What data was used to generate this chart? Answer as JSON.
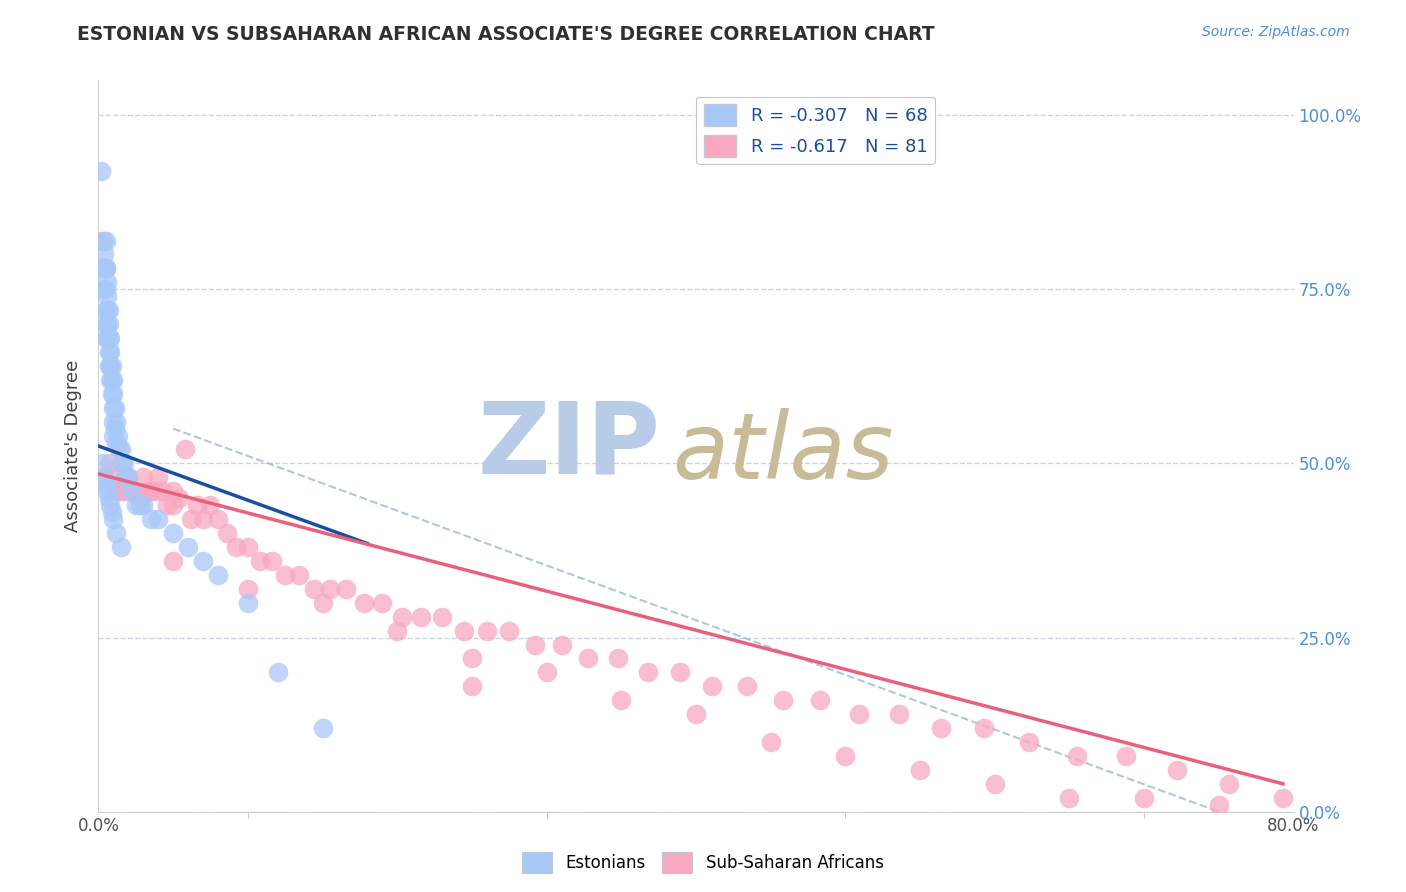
{
  "title": "ESTONIAN VS SUBSAHARAN AFRICAN ASSOCIATE'S DEGREE CORRELATION CHART",
  "source": "Source: ZipAtlas.com",
  "ylabel": "Associate's Degree",
  "legend_r1": "R = -0.307",
  "legend_n1": "N = 68",
  "legend_r2": "R = -0.617",
  "legend_n2": "N = 81",
  "xlim": [
    0.0,
    0.8
  ],
  "ylim": [
    0.0,
    1.05
  ],
  "xticks": [
    0.0,
    0.2,
    0.4,
    0.6,
    0.8
  ],
  "xticklabels": [
    "0.0%",
    "",
    "",
    "",
    "80.0%"
  ],
  "yticks": [
    0.0,
    0.25,
    0.5,
    0.75,
    1.0
  ],
  "right_yticklabels": [
    "0.0%",
    "25.0%",
    "50.0%",
    "75.0%",
    "100.0%"
  ],
  "color_estonian": "#a8c8f8",
  "color_subsaharan": "#f8a8c0",
  "color_line_estonian": "#1a4fa0",
  "color_line_subsaharan": "#e8607a",
  "color_title": "#303030",
  "color_source": "#4a90d9",
  "color_grid": "#c8d4e8",
  "color_watermark_zip": "#b8cce8",
  "color_watermark_atlas": "#c8bc98",
  "background_color": "#ffffff",
  "estonian_x": [
    0.002,
    0.003,
    0.003,
    0.004,
    0.004,
    0.004,
    0.005,
    0.005,
    0.005,
    0.005,
    0.005,
    0.005,
    0.006,
    0.006,
    0.006,
    0.006,
    0.006,
    0.007,
    0.007,
    0.007,
    0.007,
    0.007,
    0.008,
    0.008,
    0.008,
    0.008,
    0.009,
    0.009,
    0.009,
    0.01,
    0.01,
    0.01,
    0.01,
    0.01,
    0.011,
    0.011,
    0.012,
    0.012,
    0.013,
    0.014,
    0.015,
    0.016,
    0.017,
    0.018,
    0.02,
    0.022,
    0.025,
    0.028,
    0.03,
    0.035,
    0.04,
    0.05,
    0.06,
    0.07,
    0.08,
    0.1,
    0.12,
    0.15,
    0.003,
    0.004,
    0.005,
    0.006,
    0.007,
    0.008,
    0.009,
    0.01,
    0.012,
    0.015
  ],
  "estonian_y": [
    0.92,
    0.82,
    0.78,
    0.8,
    0.78,
    0.75,
    0.82,
    0.78,
    0.75,
    0.72,
    0.7,
    0.68,
    0.76,
    0.74,
    0.72,
    0.7,
    0.68,
    0.72,
    0.7,
    0.68,
    0.66,
    0.64,
    0.68,
    0.66,
    0.64,
    0.62,
    0.64,
    0.62,
    0.6,
    0.62,
    0.6,
    0.58,
    0.56,
    0.54,
    0.58,
    0.55,
    0.56,
    0.53,
    0.54,
    0.52,
    0.52,
    0.5,
    0.5,
    0.48,
    0.48,
    0.46,
    0.44,
    0.44,
    0.44,
    0.42,
    0.42,
    0.4,
    0.38,
    0.36,
    0.34,
    0.3,
    0.2,
    0.12,
    0.5,
    0.48,
    0.47,
    0.46,
    0.45,
    0.44,
    0.43,
    0.42,
    0.4,
    0.38
  ],
  "subsaharan_x": [
    0.003,
    0.005,
    0.008,
    0.01,
    0.012,
    0.015,
    0.018,
    0.02,
    0.022,
    0.025,
    0.028,
    0.03,
    0.033,
    0.035,
    0.038,
    0.04,
    0.043,
    0.046,
    0.05,
    0.054,
    0.058,
    0.062,
    0.066,
    0.07,
    0.075,
    0.08,
    0.086,
    0.092,
    0.1,
    0.108,
    0.116,
    0.125,
    0.134,
    0.144,
    0.155,
    0.166,
    0.178,
    0.19,
    0.203,
    0.216,
    0.23,
    0.245,
    0.26,
    0.275,
    0.292,
    0.31,
    0.328,
    0.348,
    0.368,
    0.389,
    0.411,
    0.434,
    0.458,
    0.483,
    0.509,
    0.536,
    0.564,
    0.593,
    0.623,
    0.655,
    0.688,
    0.722,
    0.757,
    0.793,
    0.05,
    0.1,
    0.15,
    0.2,
    0.25,
    0.3,
    0.35,
    0.4,
    0.45,
    0.5,
    0.55,
    0.6,
    0.65,
    0.7,
    0.75,
    0.05,
    0.25
  ],
  "subsaharan_y": [
    0.82,
    0.78,
    0.5,
    0.48,
    0.46,
    0.46,
    0.46,
    0.48,
    0.46,
    0.46,
    0.45,
    0.48,
    0.46,
    0.46,
    0.46,
    0.48,
    0.46,
    0.44,
    0.46,
    0.45,
    0.52,
    0.42,
    0.44,
    0.42,
    0.44,
    0.42,
    0.4,
    0.38,
    0.38,
    0.36,
    0.36,
    0.34,
    0.34,
    0.32,
    0.32,
    0.32,
    0.3,
    0.3,
    0.28,
    0.28,
    0.28,
    0.26,
    0.26,
    0.26,
    0.24,
    0.24,
    0.22,
    0.22,
    0.2,
    0.2,
    0.18,
    0.18,
    0.16,
    0.16,
    0.14,
    0.14,
    0.12,
    0.12,
    0.1,
    0.08,
    0.08,
    0.06,
    0.04,
    0.02,
    0.36,
    0.32,
    0.3,
    0.26,
    0.22,
    0.2,
    0.16,
    0.14,
    0.1,
    0.08,
    0.06,
    0.04,
    0.02,
    0.02,
    0.01,
    0.44,
    0.18
  ],
  "est_line_x0": 0.0,
  "est_line_x1": 0.18,
  "est_line_y0": 0.525,
  "est_line_y1": 0.385,
  "sub_line_x0": 0.0,
  "sub_line_x1": 0.793,
  "sub_line_y0": 0.485,
  "sub_line_y1": 0.04,
  "dash_line_x0": 0.05,
  "dash_line_x1": 0.75,
  "dash_line_y0": 0.55,
  "dash_line_y1": 0.0
}
